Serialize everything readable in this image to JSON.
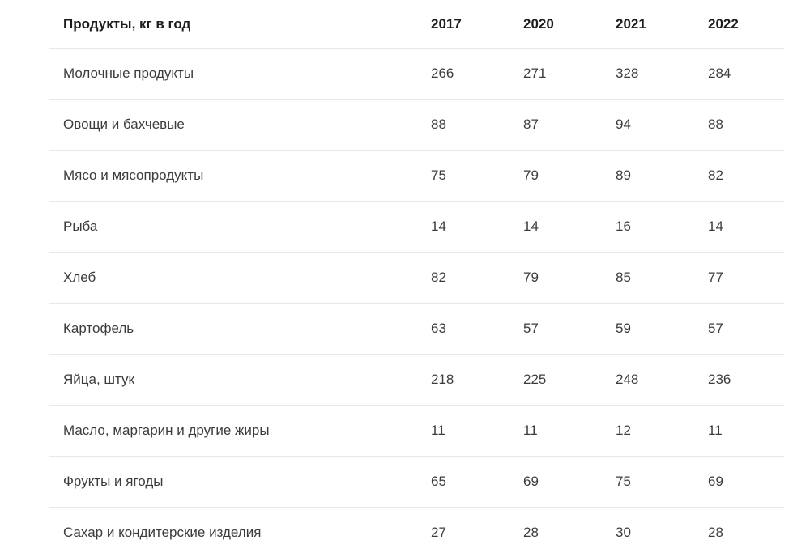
{
  "chart_data": {
    "type": "table",
    "title": "Продукты, кг в год",
    "categories": [
      "2017",
      "2020",
      "2021",
      "2022"
    ],
    "series": [
      {
        "name": "Молочные продукты",
        "values": [
          266,
          271,
          328,
          284
        ]
      },
      {
        "name": "Овощи и бахчевые",
        "values": [
          88,
          87,
          94,
          88
        ]
      },
      {
        "name": "Мясо и мясопродукты",
        "values": [
          75,
          79,
          89,
          82
        ]
      },
      {
        "name": "Рыба",
        "values": [
          14,
          14,
          16,
          14
        ]
      },
      {
        "name": "Хлеб",
        "values": [
          82,
          79,
          85,
          77
        ]
      },
      {
        "name": "Картофель",
        "values": [
          63,
          57,
          59,
          57
        ]
      },
      {
        "name": "Яйца, штук",
        "values": [
          218,
          225,
          248,
          236
        ]
      },
      {
        "name": "Масло, маргарин и другие жиры",
        "values": [
          11,
          11,
          12,
          11
        ]
      },
      {
        "name": "Фрукты и ягоды",
        "values": [
          65,
          69,
          75,
          69
        ]
      },
      {
        "name": "Сахар и кондитерские изделия",
        "values": [
          27,
          28,
          30,
          28
        ]
      }
    ]
  },
  "table": {
    "header": {
      "product_label": "Продукты, кг в год",
      "years": [
        "2017",
        "2020",
        "2021",
        "2022"
      ]
    },
    "rows": [
      {
        "product": "Молочные продукты",
        "values": [
          "266",
          "271",
          "328",
          "284"
        ]
      },
      {
        "product": "Овощи и бахчевые",
        "values": [
          "88",
          "87",
          "94",
          "88"
        ]
      },
      {
        "product": "Мясо и мясопродукты",
        "values": [
          "75",
          "79",
          "89",
          "82"
        ]
      },
      {
        "product": "Рыба",
        "values": [
          "14",
          "14",
          "16",
          "14"
        ]
      },
      {
        "product": "Хлеб",
        "values": [
          "82",
          "79",
          "85",
          "77"
        ]
      },
      {
        "product": "Картофель",
        "values": [
          "63",
          "57",
          "59",
          "57"
        ]
      },
      {
        "product": "Яйца, штук",
        "values": [
          "218",
          "225",
          "248",
          "236"
        ]
      },
      {
        "product": "Масло, маргарин и другие жиры",
        "values": [
          "11",
          "11",
          "12",
          "11"
        ]
      },
      {
        "product": "Фрукты и ягоды",
        "values": [
          "65",
          "69",
          "75",
          "69"
        ]
      },
      {
        "product": "Сахар и кондитерские изделия",
        "values": [
          "27",
          "28",
          "30",
          "28"
        ]
      }
    ],
    "colors": {
      "header_text": "#1c1c1c",
      "body_text": "#3c3c3c",
      "divider": "#e8e8e8",
      "background": "#ffffff"
    }
  }
}
